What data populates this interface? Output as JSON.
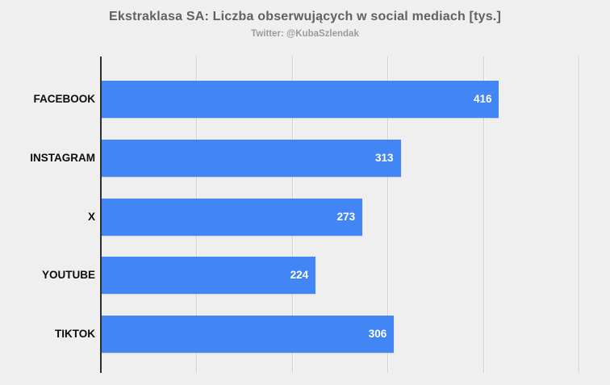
{
  "chart_data": {
    "type": "bar",
    "orientation": "horizontal",
    "title": "Ekstraklasa SA: Liczba obserwujących w social mediach [tys.]",
    "subtitle": "Twitter: @KubaSzlendak",
    "categories": [
      "FACEBOOK",
      "INSTAGRAM",
      "X",
      "YOUTUBE",
      "TIKTOK"
    ],
    "values": [
      416,
      313,
      273,
      224,
      306
    ],
    "xlabel": "",
    "ylabel": "",
    "xlim": [
      0,
      533
    ],
    "gridline_step": 100,
    "gridlines_at": [
      100,
      200,
      300,
      400,
      500
    ],
    "tick_labels": "none",
    "legend": "none",
    "value_labels": "inside bar end, white bold",
    "colors": {
      "bar": "#4285f4",
      "background": "#efefef",
      "title": "#606164",
      "subtitle": "#9b9b9d",
      "category_label": "#0d0d0d",
      "value_label": "#ffffff",
      "gridline": "#d2d2d2",
      "axis_line": "#2e2e2e"
    }
  }
}
